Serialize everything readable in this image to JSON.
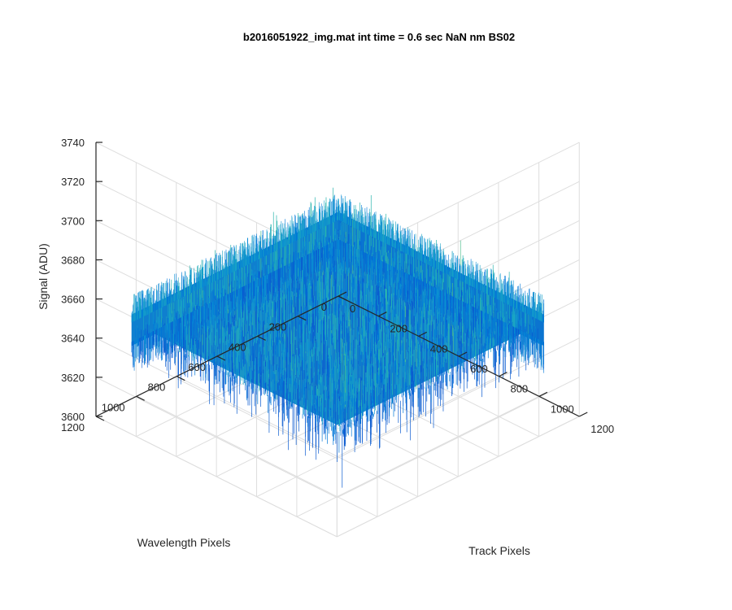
{
  "chart_data": {
    "type": "surface",
    "title": "b2016051922_img.mat int time = 0.6 sec  NaN nm BS02",
    "xlabel": "Track Pixels",
    "ylabel": "Wavelength Pixels",
    "zlabel": "Signal (ADU)",
    "x_ticks": [
      "0",
      "200",
      "400",
      "600",
      "800",
      "1000",
      "1200"
    ],
    "y_ticks": [
      "0",
      "200",
      "400",
      "600",
      "800",
      "1000",
      "1200"
    ],
    "z_ticks": [
      "3600",
      "3620",
      "3640",
      "3660",
      "3680",
      "3700",
      "3720",
      "3740"
    ],
    "xlim": [
      0,
      1200
    ],
    "ylim": [
      0,
      1200
    ],
    "zlim": [
      3600,
      3740
    ],
    "grid": true,
    "surface": {
      "x_extent": [
        0,
        1024
      ],
      "y_extent": [
        0,
        1024
      ],
      "mean_signal": 3635,
      "noise_min": 3615,
      "noise_max": 3680,
      "colormap": "parula",
      "colors": [
        "#0a5bd0",
        "#0077d8",
        "#0d93d2",
        "#1aa5c4",
        "#2bb4ad",
        "#4cbd8d",
        "#7cc26a"
      ]
    }
  }
}
